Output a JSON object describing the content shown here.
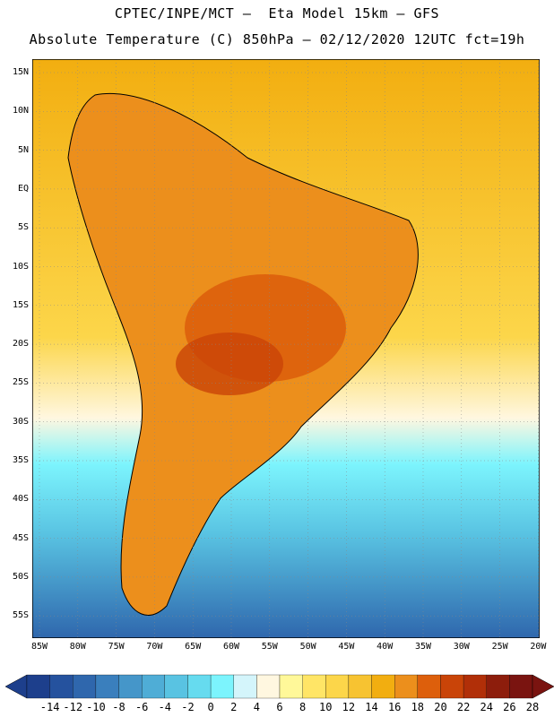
{
  "header": {
    "line1": "CPTEC/INPE/MCT –  Eta Model 15km – GFS",
    "line2": "Absolute Temperature (C) 850hPa – 02/12/2020 12UTC fct=19h"
  },
  "axes": {
    "lat_labels": [
      "15N",
      "10N",
      "5N",
      "EQ",
      "5S",
      "10S",
      "15S",
      "20S",
      "25S",
      "30S",
      "35S",
      "40S",
      "45S",
      "50S",
      "55S"
    ],
    "lon_labels": [
      "85W",
      "80W",
      "75W",
      "70W",
      "65W",
      "60W",
      "55W",
      "50W",
      "45W",
      "40W",
      "35W",
      "30W",
      "25W",
      "20W"
    ]
  },
  "colorbar": {
    "labels": [
      "-14",
      "-12",
      "-10",
      "-8",
      "-6",
      "-4",
      "-2",
      "0",
      "2",
      "4",
      "6",
      "8",
      "10",
      "12",
      "14",
      "16",
      "18",
      "20",
      "22",
      "24",
      "26",
      "28"
    ],
    "colors": [
      "#1d3f8c",
      "#25529e",
      "#2f67ad",
      "#3a7fbd",
      "#4596c9",
      "#4fadd6",
      "#59c3e2",
      "#66dbef",
      "#7cf4fd",
      "#d4f5fb",
      "#fff7e0",
      "#fff899",
      "#ffe566",
      "#fcd64a",
      "#f7c331",
      "#f2ae10",
      "#ec8f1c",
      "#dd5f0c",
      "#c94408",
      "#b12f08",
      "#8d1d0c",
      "#7a1410"
    ]
  },
  "map": {
    "ocean_gradient": [
      "#f2ae10",
      "#f7c331",
      "#fcd64a",
      "#ffe566",
      "#fff7e0",
      "#d4f5fb",
      "#7cf4fd",
      "#59c3e2",
      "#4596c9",
      "#2f67ad"
    ],
    "land_hot_color": "#dd5f0c",
    "land_warm_color": "#ec8f1c"
  }
}
